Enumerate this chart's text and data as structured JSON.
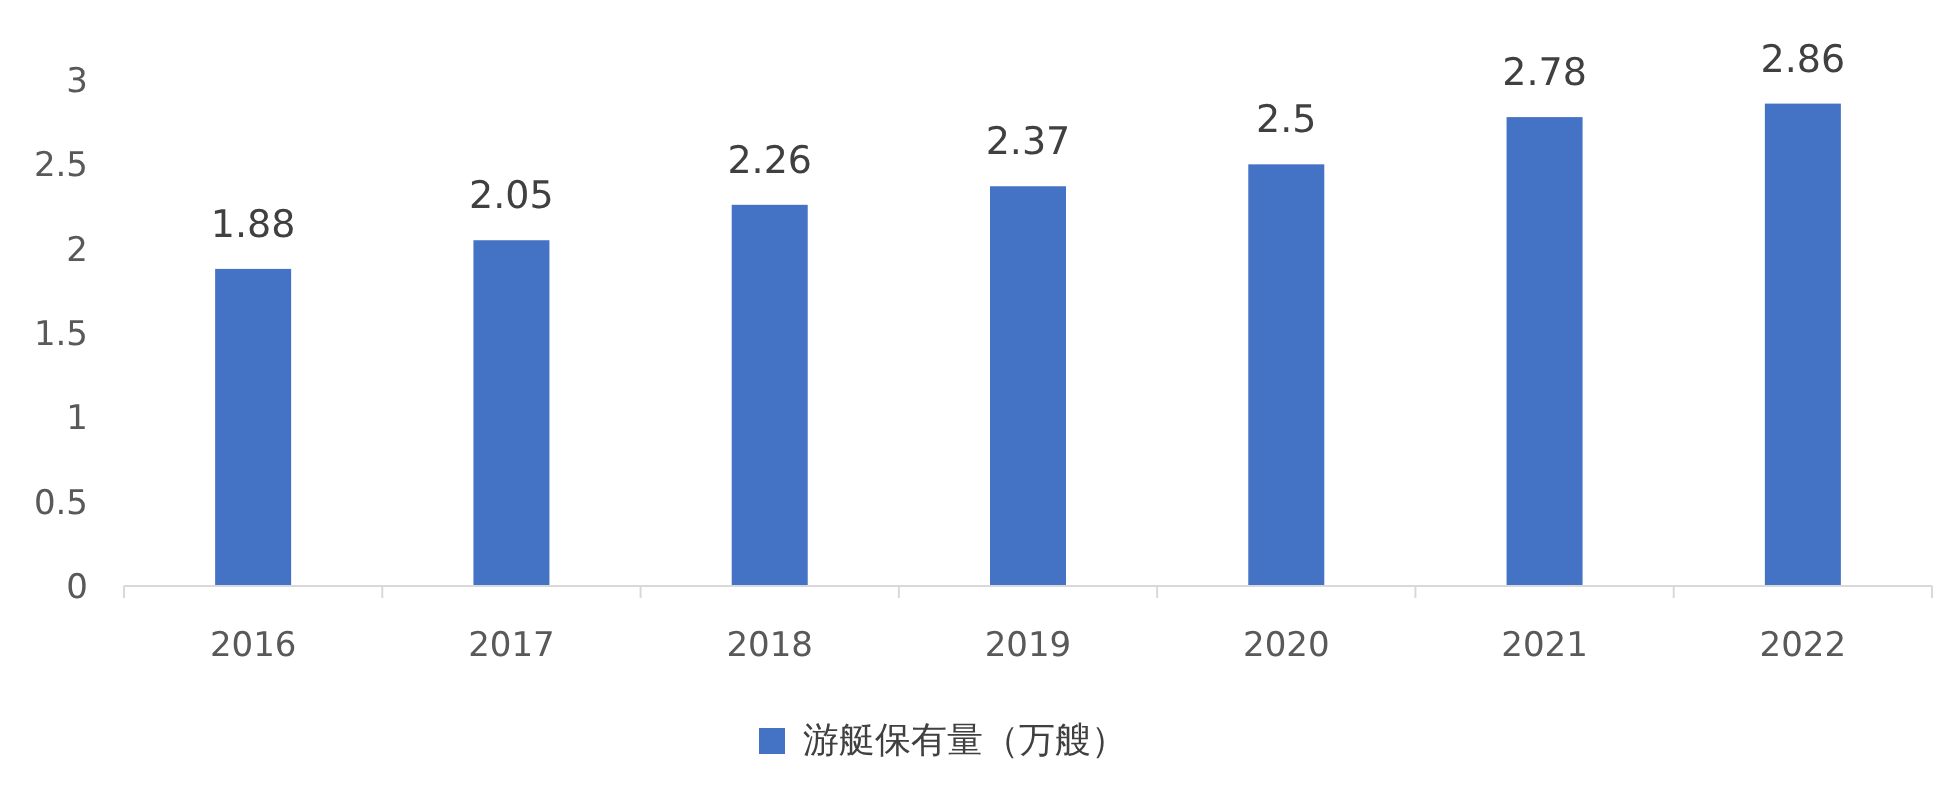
{
  "chart_data": {
    "type": "bar",
    "categories": [
      "2016",
      "2017",
      "2018",
      "2019",
      "2020",
      "2021",
      "2022"
    ],
    "series": [
      {
        "name": "游艇保有量（万艘）",
        "color": "#4472c4",
        "values": [
          1.88,
          2.05,
          2.26,
          2.37,
          2.5,
          2.78,
          2.86
        ]
      }
    ],
    "ylim": [
      0,
      3
    ],
    "yticks": [
      0,
      0.5,
      1,
      1.5,
      2,
      2.5,
      3
    ],
    "data_labels": true,
    "legend": "bottom",
    "grid": false
  }
}
